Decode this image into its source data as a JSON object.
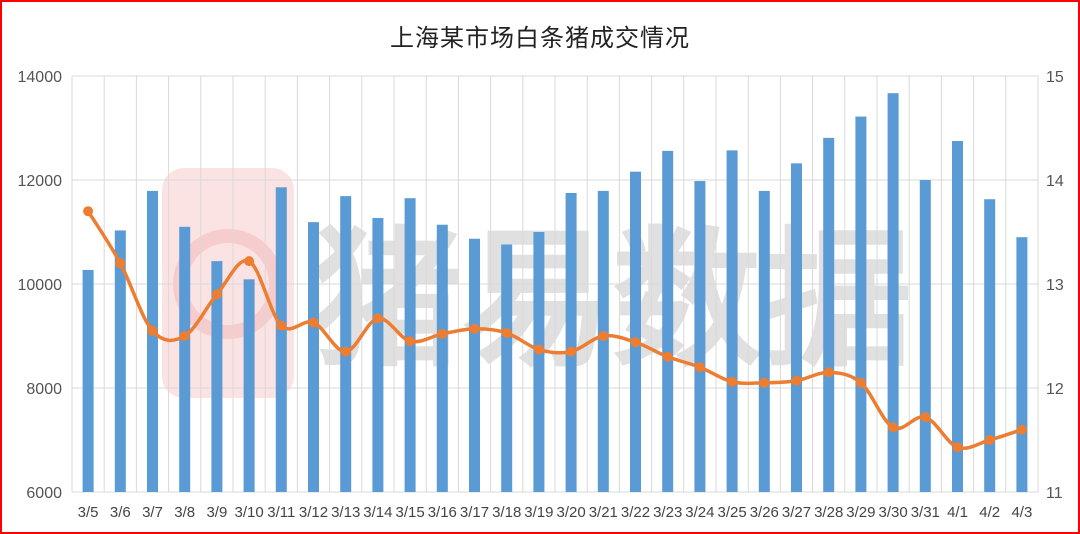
{
  "chart_data": {
    "type": "bar+line",
    "title": "上海某市场白条猪成交情况",
    "categories": [
      "3/5",
      "3/6",
      "3/7",
      "3/8",
      "3/9",
      "3/10",
      "3/11",
      "3/12",
      "3/13",
      "3/14",
      "3/15",
      "3/16",
      "3/17",
      "3/18",
      "3/19",
      "3/20",
      "3/21",
      "3/22",
      "3/23",
      "3/24",
      "3/25",
      "3/26",
      "3/27",
      "3/28",
      "3/29",
      "3/30",
      "3/31",
      "4/1",
      "4/2",
      "4/3"
    ],
    "series": [
      {
        "type": "bar",
        "axis": "left",
        "color": "#5b9bd5",
        "values": [
          10270,
          11030,
          11790,
          11100,
          10440,
          10090,
          11860,
          11190,
          11690,
          11270,
          11650,
          11140,
          10870,
          10760,
          11000,
          11750,
          11790,
          12160,
          12560,
          11980,
          12570,
          11790,
          12320,
          12810,
          13220,
          13670,
          12000,
          12750,
          11630,
          10900
        ]
      },
      {
        "type": "line",
        "axis": "right",
        "color": "#ed7d31",
        "values": [
          13.7,
          13.2,
          12.55,
          12.5,
          12.9,
          13.22,
          12.6,
          12.63,
          12.35,
          12.67,
          12.45,
          12.52,
          12.57,
          12.53,
          12.37,
          12.35,
          12.5,
          12.44,
          12.3,
          12.2,
          12.06,
          12.05,
          12.07,
          12.15,
          12.05,
          11.62,
          11.72,
          11.43,
          11.5,
          11.6
        ]
      }
    ],
    "y_left": {
      "min": 6000,
      "max": 14000,
      "ticks": [
        6000,
        8000,
        10000,
        12000,
        14000
      ]
    },
    "y_right": {
      "min": 11,
      "max": 15,
      "ticks": [
        11,
        12,
        13,
        14,
        15
      ]
    },
    "grid": true,
    "legend": "none"
  },
  "watermark": {
    "text": "猪易数据"
  },
  "colors": {
    "frame": "#ff0000",
    "grid": "#d9d9d9",
    "bar": "#5b9bd5",
    "line": "#ed7d31"
  }
}
